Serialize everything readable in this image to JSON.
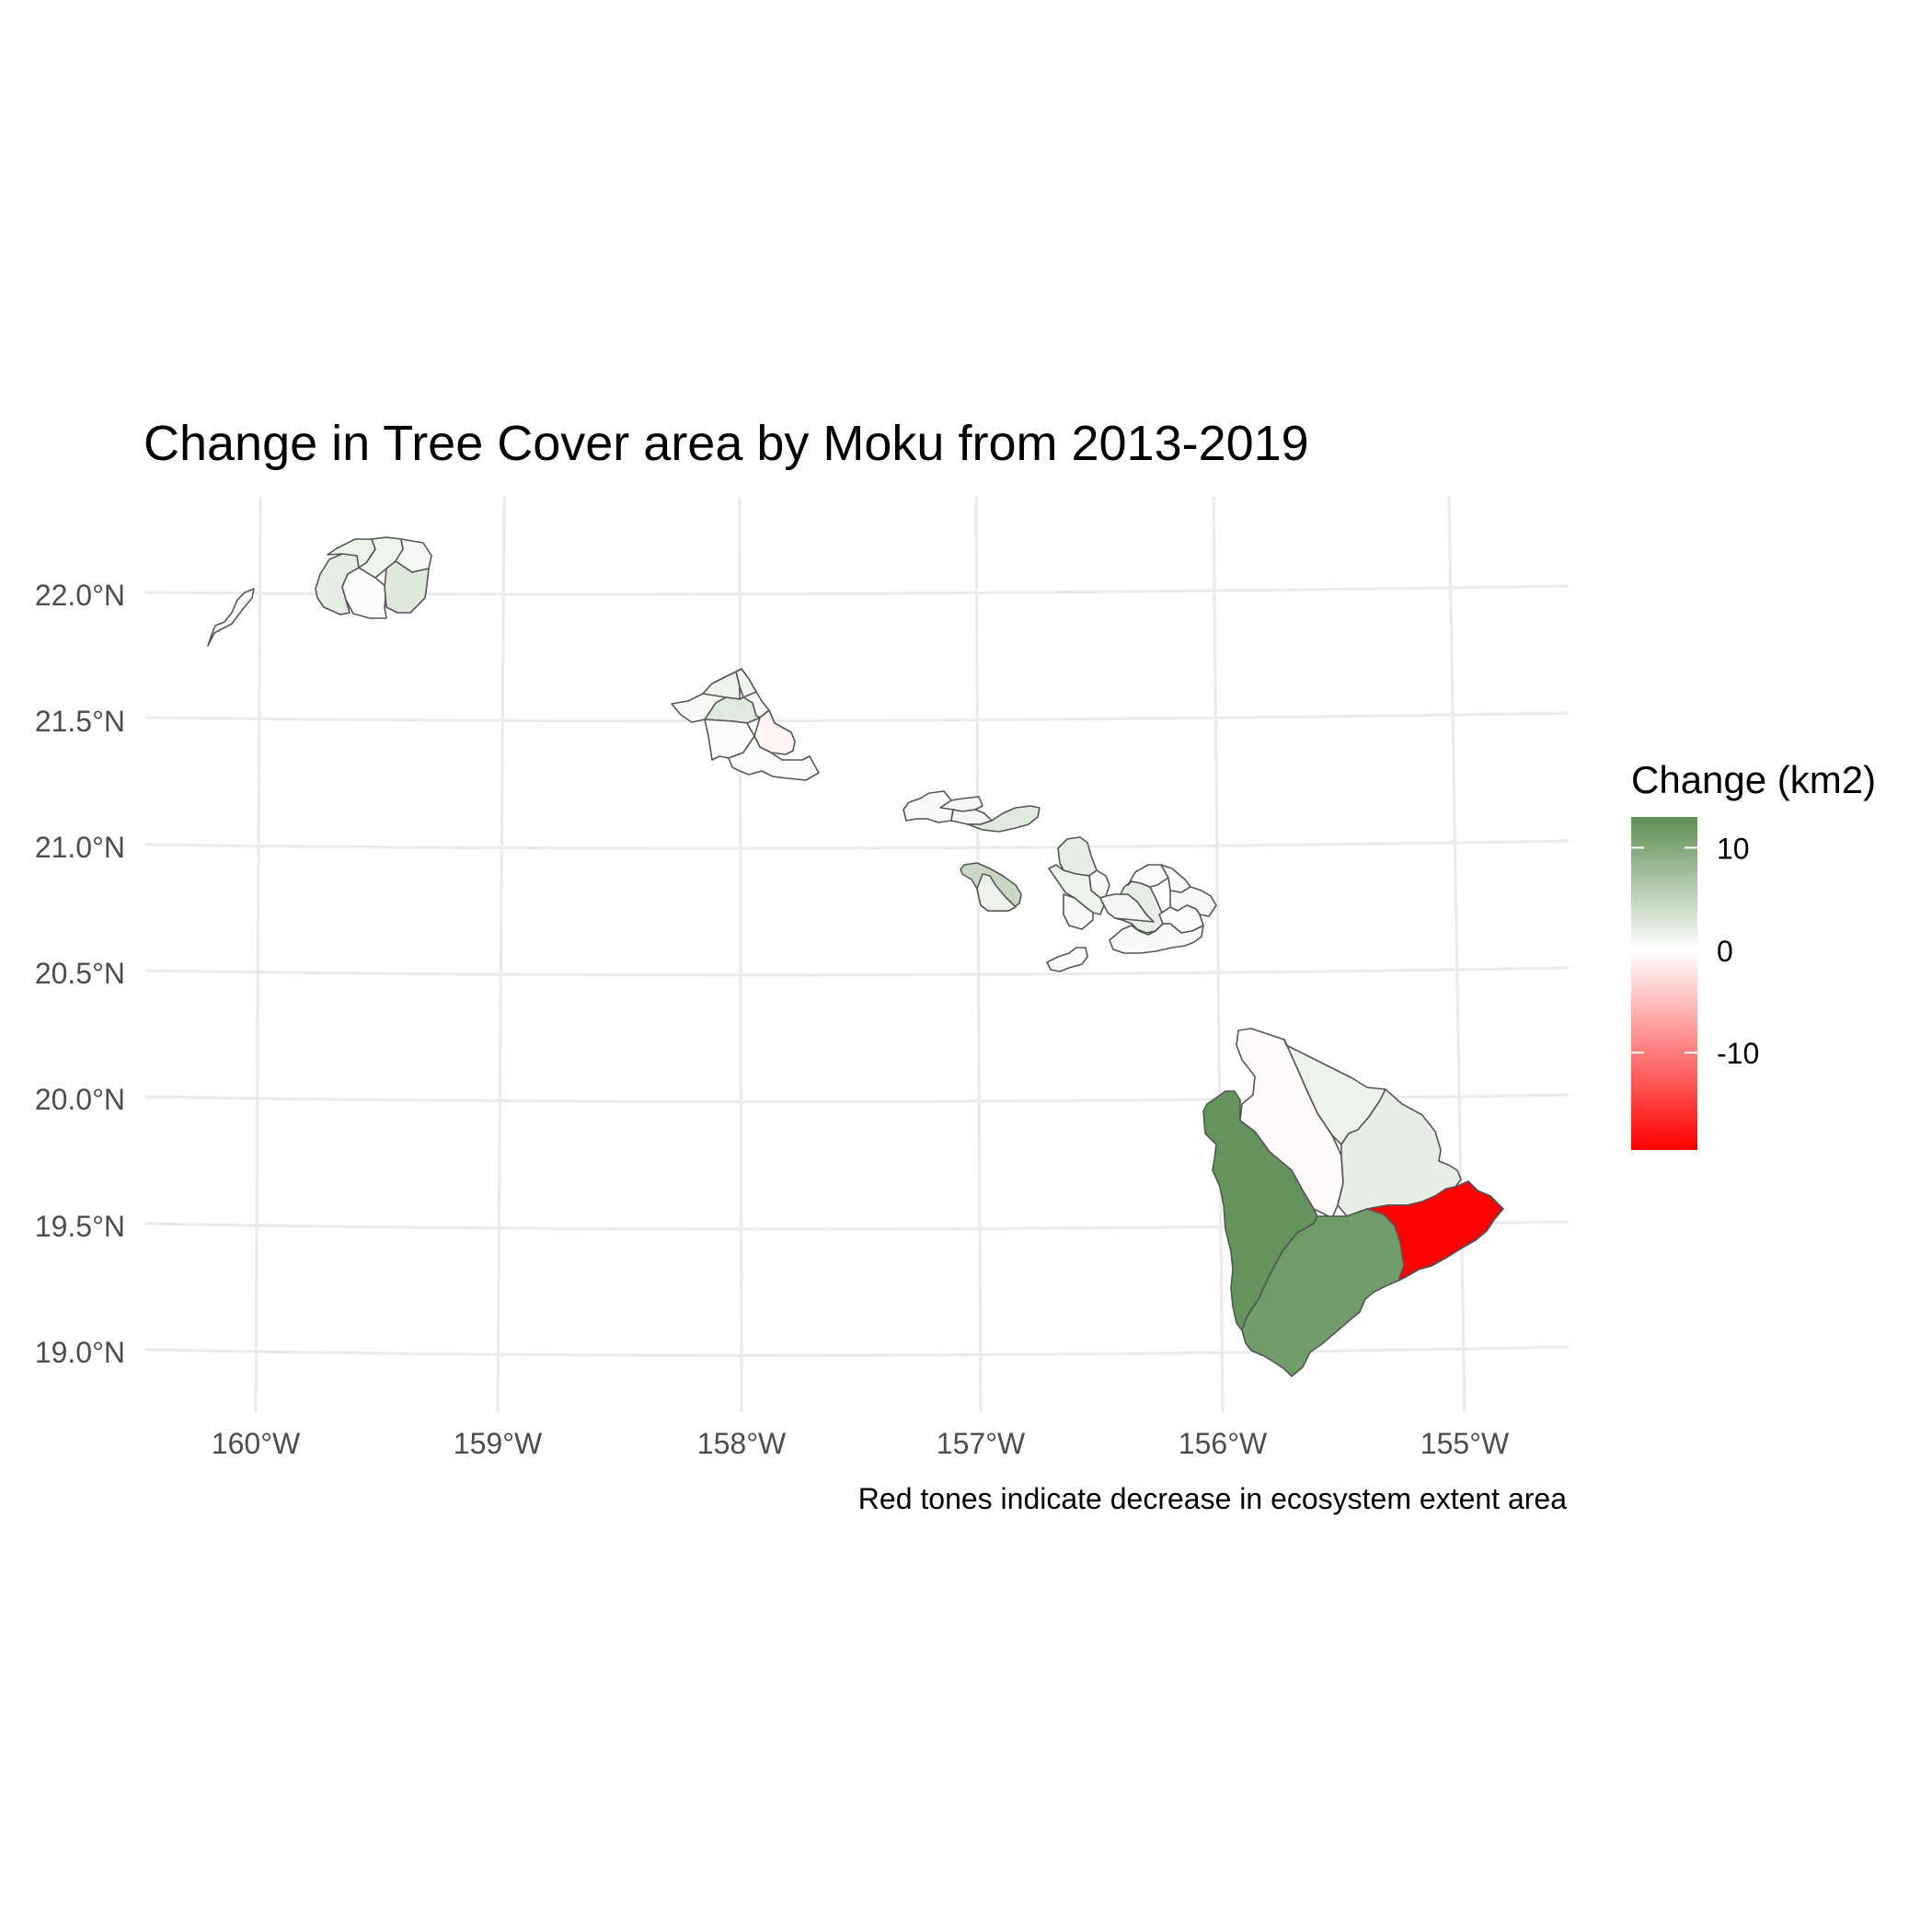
{
  "title": "Change in Tree Cover area by Moku from 2013-2019",
  "caption": "Red tones indicate decrease in ecosystem extent area",
  "axes": {
    "x_ticks": [
      "160°W",
      "159°W",
      "158°W",
      "157°W",
      "156°W",
      "155°W"
    ],
    "y_ticks": [
      "22.0°N",
      "21.5°N",
      "21.0°N",
      "20.5°N",
      "20.0°N",
      "19.5°N",
      "19.0°N"
    ]
  },
  "legend": {
    "title": "Change (km2)",
    "labels": [
      "10",
      "0",
      "-10"
    ],
    "domain": [
      -19.5,
      13
    ],
    "colors": {
      "high": "#5f8f55",
      "mid": "#ffffff",
      "low": "#ff0000"
    }
  },
  "grid": true,
  "chart_data": {
    "type": "choropleth",
    "projection": "Albers conic (Hawaii)",
    "title": "Change in Tree Cover area by Moku from 2013-2019",
    "caption": "Red tones indicate decrease in ecosystem extent area",
    "x_range": [
      -160.5,
      -154.5
    ],
    "y_range": [
      18.75,
      22.4
    ],
    "value_label": "Change (km2)",
    "value_range": [
      -19.5,
      13
    ],
    "regions": [
      {
        "island": "Niihau",
        "value": 0.5
      },
      {
        "island": "Kauai",
        "value": 2
      },
      {
        "island": "Kauai",
        "value": 0.3
      },
      {
        "island": "Kauai",
        "value": 1.5
      },
      {
        "island": "Kauai",
        "value": 1.2
      },
      {
        "island": "Kauai",
        "value": 0.8
      },
      {
        "island": "Kauai",
        "value": 2.8
      },
      {
        "island": "Oahu",
        "value": 0.5
      },
      {
        "island": "Oahu",
        "value": 1.5
      },
      {
        "island": "Oahu",
        "value": 2.5
      },
      {
        "island": "Oahu",
        "value": 1.2
      },
      {
        "island": "Oahu",
        "value": 0.3
      },
      {
        "island": "Oahu",
        "value": -0.8
      },
      {
        "island": "Oahu",
        "value": 0.4
      },
      {
        "island": "Molokai",
        "value": 0.5
      },
      {
        "island": "Molokai",
        "value": 1
      },
      {
        "island": "Molokai",
        "value": 1
      },
      {
        "island": "Molokai",
        "value": 2.5
      },
      {
        "island": "Lanai",
        "value": 4.5
      },
      {
        "island": "Lanai",
        "value": 1.5
      },
      {
        "island": "Maui",
        "value": 2
      },
      {
        "island": "Maui",
        "value": 0.5
      },
      {
        "island": "Maui",
        "value": 1.5
      },
      {
        "island": "Maui",
        "value": 0.5
      },
      {
        "island": "Maui",
        "value": 1
      },
      {
        "island": "Maui",
        "value": 2
      },
      {
        "island": "Maui",
        "value": 0.3
      },
      {
        "island": "Maui",
        "value": 0.5
      },
      {
        "island": "Maui",
        "value": 0.5
      },
      {
        "island": "Maui",
        "value": 0.3
      },
      {
        "island": "Maui",
        "value": 0.5
      },
      {
        "island": "Kahoolawe",
        "value": 0.3
      },
      {
        "island": "Hawaii",
        "value": -0.3
      },
      {
        "island": "Hawaii",
        "value": 1.5
      },
      {
        "island": "Hawaii",
        "value": 2
      },
      {
        "island": "Hawaii",
        "value": 12.5
      },
      {
        "island": "Hawaii",
        "value": 11.5
      },
      {
        "island": "Hawaii",
        "value": -19.5
      }
    ]
  }
}
